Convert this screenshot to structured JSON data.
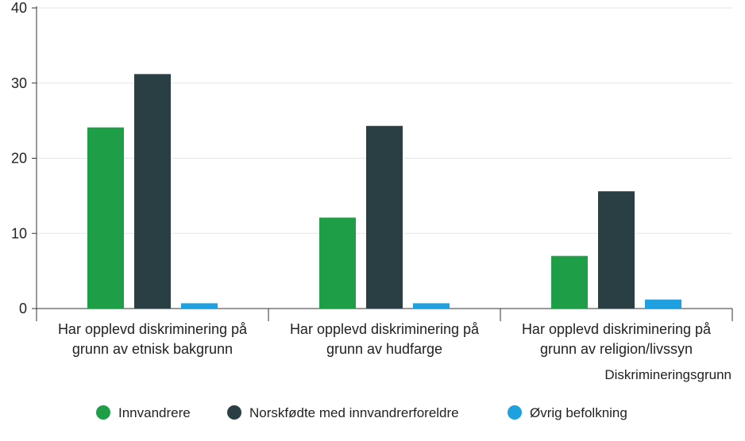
{
  "chart_data": {
    "type": "bar",
    "categories": [
      [
        "Har opplevd diskriminering på",
        "grunn av etnisk bakgrunn"
      ],
      [
        "Har opplevd diskriminering på",
        "grunn av hudfarge"
      ],
      [
        "Har opplevd diskriminering på",
        "grunn av religion/livssyn"
      ]
    ],
    "series": [
      {
        "name": "Innvandrere",
        "color": "#1f9e48",
        "values": [
          24.1,
          12.1,
          7.0
        ]
      },
      {
        "name": "Norskfødte med innvandrerforeldre",
        "color": "#2a3f44",
        "values": [
          31.2,
          24.3,
          15.6
        ]
      },
      {
        "name": "Øvrig befolkning",
        "color": "#1fa0e0",
        "values": [
          0.7,
          0.7,
          1.2
        ]
      }
    ],
    "title": "",
    "xlabel": "Diskrimineringsgrunn",
    "ylabel": "",
    "ylim": [
      0,
      40
    ],
    "yticks": [
      0,
      10,
      20,
      30,
      40
    ],
    "grid": true,
    "legend_position": "bottom"
  }
}
